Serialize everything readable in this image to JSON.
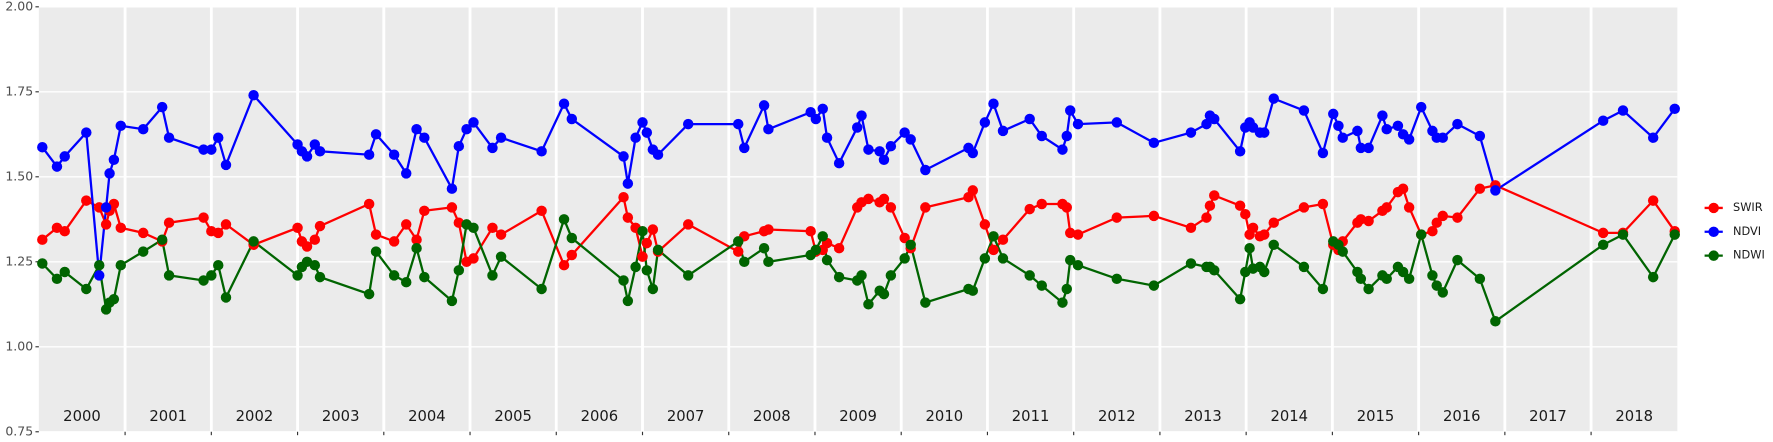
{
  "chart_data": {
    "type": "line",
    "x": [
      2000.04,
      2000.21,
      2000.3,
      2000.55,
      2000.7,
      2000.78,
      2000.82,
      2000.87,
      2000.95,
      2001.21,
      2001.43,
      2001.51,
      2001.91,
      2002.0,
      2002.08,
      2002.17,
      2002.49,
      2003.0,
      2003.05,
      2003.11,
      2003.2,
      2003.26,
      2003.83,
      2003.91,
      2004.12,
      2004.26,
      2004.38,
      2004.47,
      2004.79,
      2004.87,
      2004.96,
      2005.04,
      2005.26,
      2005.36,
      2005.83,
      2006.09,
      2006.18,
      2006.78,
      2006.83,
      2006.92,
      2007.0,
      2007.05,
      2007.12,
      2007.18,
      2007.53,
      2008.11,
      2008.18,
      2008.41,
      2008.46,
      2008.95,
      2009.01,
      2009.09,
      2009.14,
      2009.28,
      2009.49,
      2009.54,
      2009.62,
      2009.75,
      2009.8,
      2009.88,
      2010.04,
      2010.11,
      2010.28,
      2010.78,
      2010.83,
      2010.97,
      2011.07,
      2011.18,
      2011.49,
      2011.63,
      2011.87,
      2011.92,
      2011.96,
      2012.05,
      2012.5,
      2012.93,
      2013.36,
      2013.54,
      2013.58,
      2013.63,
      2013.93,
      2013.99,
      2014.04,
      2014.08,
      2014.16,
      2014.21,
      2014.32,
      2014.67,
      2014.89,
      2015.01,
      2015.07,
      2015.12,
      2015.29,
      2015.33,
      2015.42,
      2015.58,
      2015.63,
      2015.76,
      2015.82,
      2015.89,
      2016.03,
      2016.16,
      2016.21,
      2016.28,
      2016.45,
      2016.71,
      2016.89,
      2018.14,
      2018.37,
      2018.72,
      2018.97
    ],
    "series": [
      {
        "name": "SWIR",
        "color": "#ff0000",
        "values": [
          1.315,
          1.35,
          1.34,
          1.43,
          1.41,
          1.36,
          1.4,
          1.42,
          1.35,
          1.335,
          1.31,
          1.365,
          1.38,
          1.34,
          1.335,
          1.36,
          1.3,
          1.35,
          1.31,
          1.295,
          1.315,
          1.355,
          1.42,
          1.33,
          1.31,
          1.36,
          1.315,
          1.4,
          1.41,
          1.365,
          1.25,
          1.26,
          1.35,
          1.33,
          1.4,
          1.24,
          1.27,
          1.44,
          1.38,
          1.35,
          1.265,
          1.305,
          1.345,
          1.28,
          1.36,
          1.28,
          1.325,
          1.34,
          1.345,
          1.34,
          1.28,
          1.285,
          1.305,
          1.29,
          1.41,
          1.425,
          1.435,
          1.425,
          1.435,
          1.41,
          1.32,
          1.29,
          1.41,
          1.44,
          1.46,
          1.36,
          1.285,
          1.315,
          1.405,
          1.42,
          1.42,
          1.41,
          1.335,
          1.33,
          1.38,
          1.385,
          1.35,
          1.38,
          1.415,
          1.445,
          1.415,
          1.39,
          1.33,
          1.35,
          1.325,
          1.33,
          1.365,
          1.41,
          1.42,
          1.3,
          1.285,
          1.31,
          1.365,
          1.375,
          1.37,
          1.4,
          1.41,
          1.455,
          1.465,
          1.41,
          1.33,
          1.34,
          1.365,
          1.385,
          1.38,
          1.465,
          1.475,
          1.335,
          1.335,
          1.43,
          1.34
        ]
      },
      {
        "name": "NDVI",
        "color": "#0000ff",
        "values": [
          1.587,
          1.53,
          1.56,
          1.63,
          1.21,
          1.41,
          1.51,
          1.55,
          1.65,
          1.64,
          1.705,
          1.615,
          1.58,
          1.58,
          1.615,
          1.535,
          1.74,
          1.595,
          1.575,
          1.56,
          1.595,
          1.575,
          1.565,
          1.625,
          1.565,
          1.51,
          1.64,
          1.615,
          1.465,
          1.59,
          1.64,
          1.66,
          1.585,
          1.615,
          1.575,
          1.715,
          1.67,
          1.56,
          1.48,
          1.615,
          1.66,
          1.63,
          1.58,
          1.565,
          1.655,
          1.655,
          1.585,
          1.71,
          1.64,
          1.69,
          1.67,
          1.7,
          1.615,
          1.54,
          1.645,
          1.68,
          1.58,
          1.575,
          1.55,
          1.59,
          1.63,
          1.61,
          1.52,
          1.585,
          1.57,
          1.66,
          1.715,
          1.635,
          1.67,
          1.62,
          1.58,
          1.62,
          1.695,
          1.655,
          1.66,
          1.6,
          1.63,
          1.655,
          1.68,
          1.67,
          1.575,
          1.645,
          1.66,
          1.645,
          1.63,
          1.63,
          1.73,
          1.695,
          1.57,
          1.685,
          1.65,
          1.615,
          1.635,
          1.585,
          1.585,
          1.68,
          1.64,
          1.65,
          1.625,
          1.61,
          1.705,
          1.635,
          1.615,
          1.615,
          1.655,
          1.62,
          1.46,
          1.665,
          1.695,
          1.615,
          1.7
        ]
      },
      {
        "name": "NDWI",
        "color": "#006400",
        "values": [
          1.245,
          1.2,
          1.22,
          1.17,
          1.24,
          1.11,
          1.13,
          1.14,
          1.24,
          1.28,
          1.315,
          1.21,
          1.195,
          1.21,
          1.24,
          1.145,
          1.31,
          1.21,
          1.235,
          1.25,
          1.24,
          1.205,
          1.155,
          1.28,
          1.21,
          1.19,
          1.29,
          1.205,
          1.135,
          1.225,
          1.36,
          1.35,
          1.21,
          1.265,
          1.17,
          1.375,
          1.32,
          1.195,
          1.135,
          1.235,
          1.34,
          1.225,
          1.17,
          1.285,
          1.21,
          1.31,
          1.25,
          1.29,
          1.25,
          1.27,
          1.285,
          1.325,
          1.255,
          1.205,
          1.195,
          1.21,
          1.125,
          1.165,
          1.155,
          1.21,
          1.26,
          1.3,
          1.13,
          1.17,
          1.165,
          1.26,
          1.325,
          1.26,
          1.21,
          1.18,
          1.13,
          1.17,
          1.255,
          1.24,
          1.2,
          1.18,
          1.245,
          1.235,
          1.235,
          1.225,
          1.14,
          1.22,
          1.29,
          1.23,
          1.235,
          1.22,
          1.3,
          1.235,
          1.17,
          1.31,
          1.3,
          1.28,
          1.22,
          1.2,
          1.17,
          1.21,
          1.2,
          1.235,
          1.22,
          1.2,
          1.33,
          1.21,
          1.18,
          1.16,
          1.255,
          1.2,
          1.075,
          1.3,
          1.33,
          1.205,
          1.33
        ]
      }
    ],
    "xlim": [
      2000,
      2019
    ],
    "xticks": [
      2001,
      2002,
      2003,
      2004,
      2005,
      2006,
      2007,
      2008,
      2009,
      2010,
      2011,
      2012,
      2013,
      2014,
      2015,
      2016,
      2017,
      2018
    ],
    "year_labels": [
      {
        "value": 2000.5,
        "label": "2000"
      },
      {
        "value": 2001.5,
        "label": "2001"
      },
      {
        "value": 2002.5,
        "label": "2002"
      },
      {
        "value": 2003.5,
        "label": "2003"
      },
      {
        "value": 2004.5,
        "label": "2004"
      },
      {
        "value": 2005.5,
        "label": "2005"
      },
      {
        "value": 2006.5,
        "label": "2006"
      },
      {
        "value": 2007.5,
        "label": "2007"
      },
      {
        "value": 2008.5,
        "label": "2008"
      },
      {
        "value": 2009.5,
        "label": "2009"
      },
      {
        "value": 2010.5,
        "label": "2010"
      },
      {
        "value": 2011.5,
        "label": "2011"
      },
      {
        "value": 2012.5,
        "label": "2012"
      },
      {
        "value": 2013.5,
        "label": "2013"
      },
      {
        "value": 2014.5,
        "label": "2014"
      },
      {
        "value": 2015.5,
        "label": "2015"
      },
      {
        "value": 2016.5,
        "label": "2016"
      },
      {
        "value": 2017.5,
        "label": "2017"
      },
      {
        "value": 2018.5,
        "label": "2018"
      }
    ],
    "ylim": [
      0.75,
      2
    ],
    "yticks": [
      0.75,
      {
        "value": 1,
        "label": "1.00"
      },
      1.25,
      {
        "value": 1.5,
        "label": "1.50"
      },
      1.75,
      {
        "value": 2,
        "label": "2.00"
      }
    ],
    "grid": true,
    "legend": "right"
  }
}
